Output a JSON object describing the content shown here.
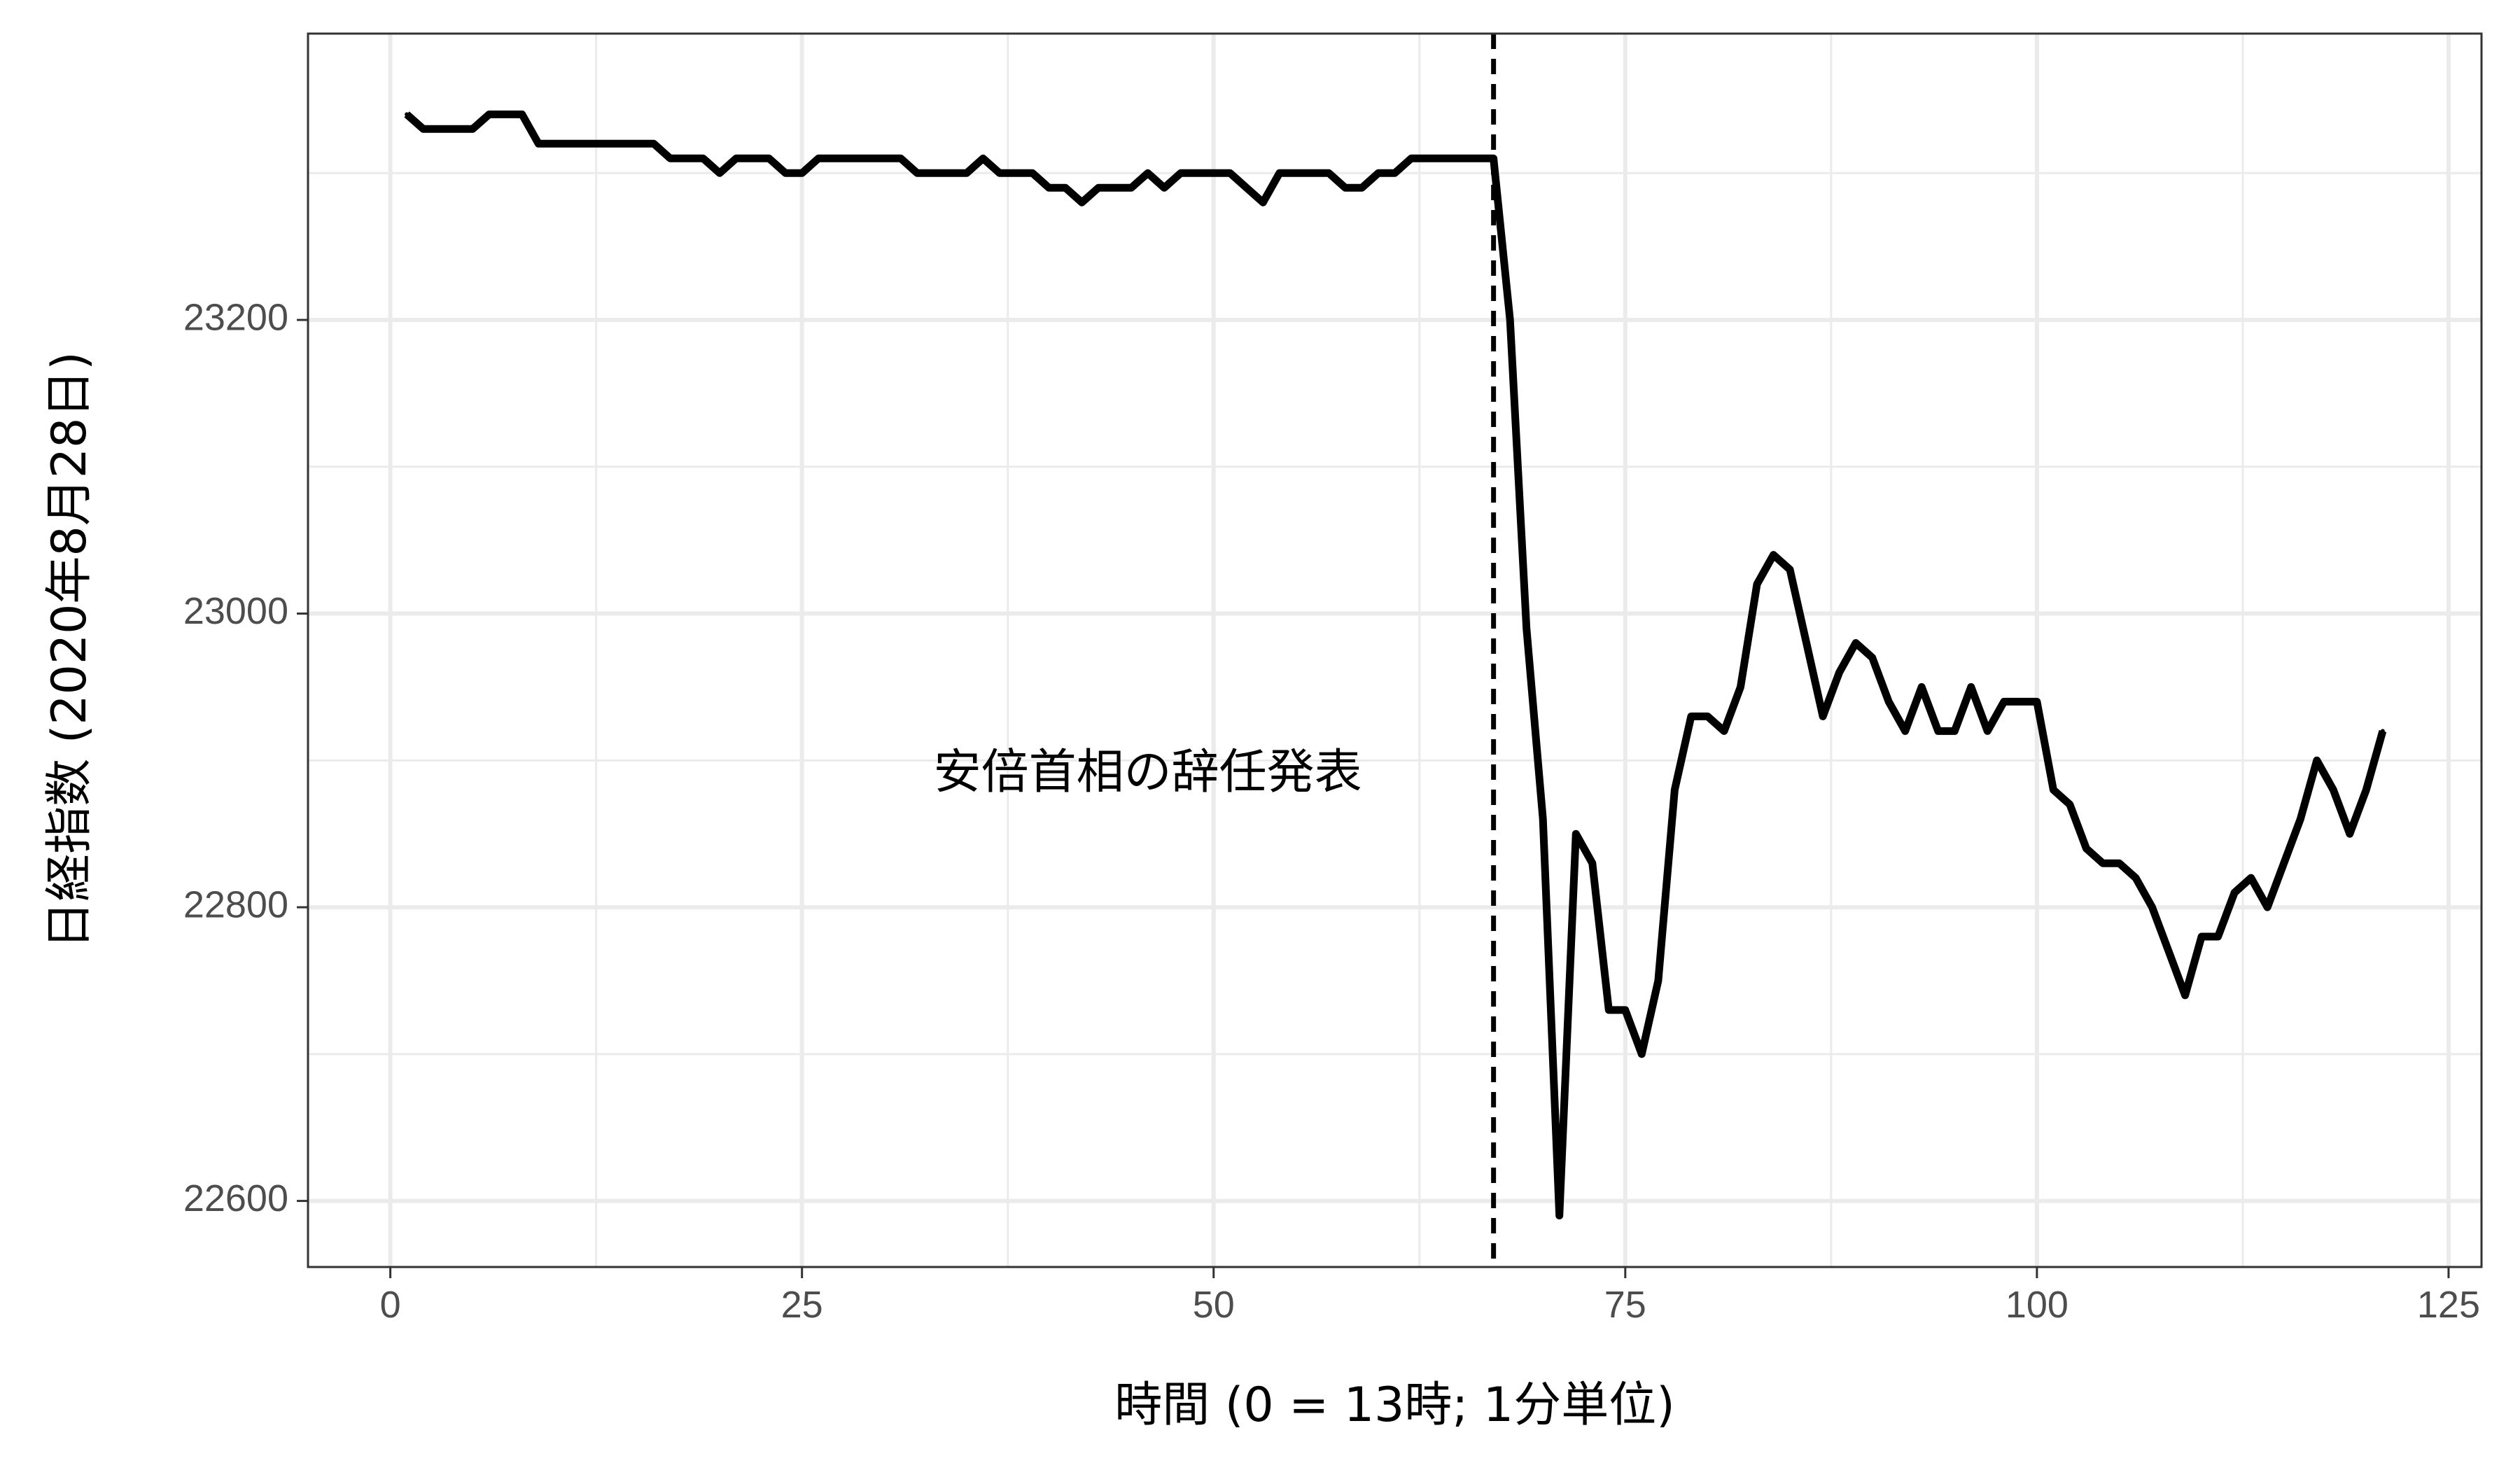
{
  "chart_data": {
    "type": "line",
    "title": "",
    "xlabel": "時間 (0 = 13時; 1分単位)",
    "ylabel": "日経指数 (2020年8月28日)",
    "xlim": [
      -5,
      127
    ],
    "ylim": [
      22555,
      23395
    ],
    "x_ticks": [
      0,
      25,
      50,
      75,
      100,
      125
    ],
    "x_minor_ticks": [
      12.5,
      37.5,
      62.5,
      87.5,
      112.5
    ],
    "y_ticks": [
      22600,
      22800,
      23000,
      23200
    ],
    "y_minor_ticks": [
      22700,
      22900,
      23100,
      23300
    ],
    "grid": true,
    "line_color": "#000000",
    "vline": {
      "x": 67,
      "style": "dashed"
    },
    "annotation": {
      "text": "安倍首相の辞任発表",
      "x": 46,
      "y": 22890
    },
    "series": [
      {
        "x": [
          1,
          2,
          3,
          4,
          5,
          6,
          7,
          8,
          9,
          10,
          11,
          12,
          13,
          14,
          15,
          16,
          17,
          18,
          19,
          20,
          21,
          22,
          23,
          24,
          25,
          26,
          27,
          28,
          29,
          30,
          31,
          32,
          33,
          34,
          35,
          36,
          37,
          38,
          39,
          40,
          41,
          42,
          43,
          44,
          45,
          46,
          47,
          48,
          49,
          50,
          51,
          52,
          53,
          54,
          55,
          56,
          57,
          58,
          59,
          60,
          61,
          62,
          63,
          64,
          65,
          66,
          67,
          68,
          69,
          70,
          71,
          72,
          73,
          74,
          75,
          76,
          77,
          78,
          79,
          80,
          81,
          82,
          83,
          84,
          85,
          86,
          87,
          88,
          89,
          90,
          91,
          92,
          93,
          94,
          95,
          96,
          97,
          98,
          99,
          100,
          101,
          102,
          103,
          104,
          105,
          106,
          107,
          108,
          109,
          110,
          111,
          112,
          113,
          114,
          115,
          116,
          117,
          118,
          119,
          120,
          121
        ],
        "values": [
          23340,
          23330,
          23330,
          23330,
          23330,
          23340,
          23340,
          23340,
          23320,
          23320,
          23320,
          23320,
          23320,
          23320,
          23320,
          23320,
          23310,
          23310,
          23310,
          23300,
          23310,
          23310,
          23310,
          23300,
          23300,
          23310,
          23310,
          23310,
          23310,
          23310,
          23310,
          23300,
          23300,
          23300,
          23300,
          23310,
          23300,
          23300,
          23300,
          23290,
          23290,
          23280,
          23290,
          23290,
          23290,
          23300,
          23290,
          23300,
          23300,
          23300,
          23300,
          23290,
          23280,
          23300,
          23300,
          23300,
          23300,
          23290,
          23290,
          23300,
          23300,
          23310,
          23310,
          23310,
          23310,
          23310,
          23310,
          23200,
          22990,
          22860,
          22590,
          22850,
          22830,
          22730,
          22730,
          22700,
          22750,
          22880,
          22930,
          22930,
          22920,
          22950,
          23020,
          23040,
          23030,
          22980,
          22930,
          22960,
          22980,
          22970,
          22940,
          22920,
          22950,
          22920,
          22920,
          22950,
          22920,
          22940,
          22940,
          22940,
          22880,
          22870,
          22840,
          22830,
          22830,
          22820,
          22800,
          22770,
          22740,
          22780,
          22780,
          22810,
          22820,
          22800,
          22830,
          22860,
          22900,
          22880,
          22850,
          22880,
          22920
        ]
      }
    ]
  }
}
